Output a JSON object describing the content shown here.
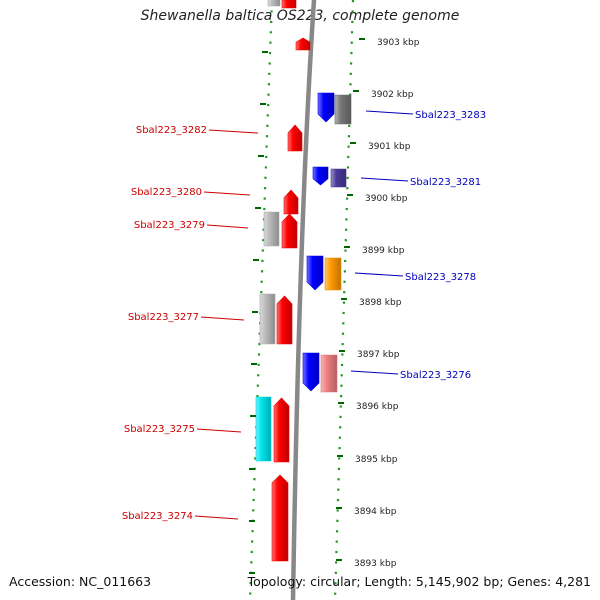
{
  "title": "Shewanella baltica OS223, complete genome",
  "footer": {
    "accession_label": "Accession:",
    "accession": "NC_011663",
    "topology_label": "Topology:",
    "topology": "circular",
    "length_label": "Length:",
    "length": "5,145,902 bp",
    "genes_label": "Genes:",
    "genes": "4,281"
  },
  "colors": {
    "forward_gene": "#ff0000",
    "reverse_gene": "#0000ff",
    "other_gene_gray": "#bbbbbb",
    "other_gene_dark_gray": "#777777",
    "other_gene_cyan": "#00e5ee",
    "other_gene_orange": "#ff9900",
    "other_gene_pink": "#f08080",
    "other_gene_purple": "#4a3a9a",
    "left_label": "#cc0000",
    "right_label": "#0000bb",
    "backbone": "#888888",
    "ring_dots": "#229922",
    "ticks": "#006600"
  },
  "scale_labels": [
    "3903 kbp",
    "3902 kbp",
    "3901 kbp",
    "3900 kbp",
    "3899 kbp",
    "3898 kbp",
    "3897 kbp",
    "3896 kbp",
    "3895 kbp",
    "3894 kbp",
    "3893 kbp"
  ],
  "left_gene_labels": [
    "Sbal223_3282",
    "Sbal223_3280",
    "Sbal223_3279",
    "Sbal223_3277",
    "Sbal223_3275",
    "Sbal223_3274"
  ],
  "right_gene_labels": [
    "Sbal223_3283",
    "Sbal223_3281",
    "Sbal223_3278",
    "Sbal223_3276"
  ]
}
